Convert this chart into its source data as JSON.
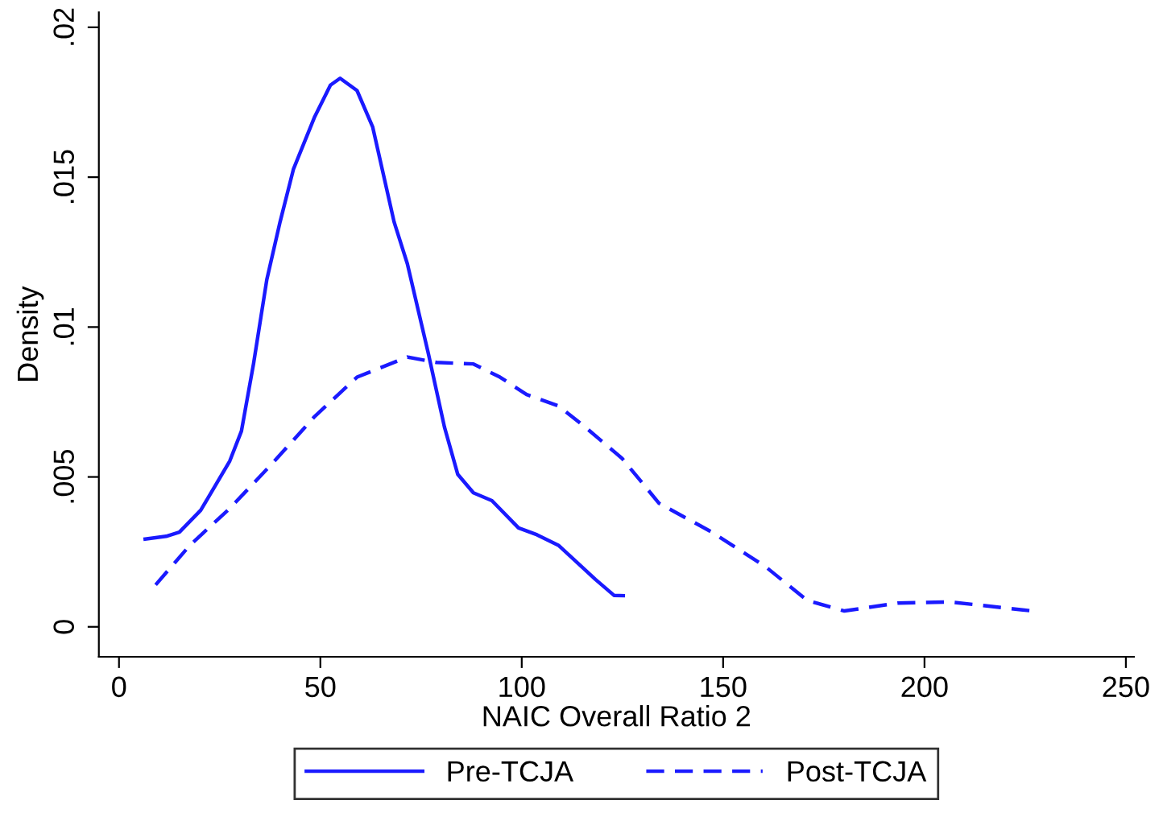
{
  "chart_data": {
    "type": "line",
    "xlabel": "NAIC Overall Ratio 2",
    "ylabel": "Density",
    "xlim": [
      -5,
      252
    ],
    "ylim": [
      -0.001,
      0.0205
    ],
    "xticks": [
      0,
      50,
      100,
      150,
      200,
      250
    ],
    "yticks": [
      {
        "value": 0,
        "label": "0"
      },
      {
        "value": 0.005,
        "label": ".005"
      },
      {
        "value": 0.01,
        "label": ".01"
      },
      {
        "value": 0.015,
        "label": ".015"
      },
      {
        "value": 0.02,
        "label": ".02"
      }
    ],
    "grid": false,
    "legend": "bottom",
    "marker": "none",
    "series": [
      {
        "name": "Pre-TCJA",
        "color": "#1a1aff",
        "line_style": "solid",
        "x": [
          6.5,
          11.7,
          15.0,
          20.3,
          27.5,
          30.4,
          33.4,
          36.7,
          40.0,
          43.3,
          48.6,
          52.5,
          54.9,
          59.1,
          63.0,
          68.3,
          71.6,
          76.8,
          80.8,
          84.1,
          88.0,
          92.6,
          99.2,
          103.8,
          109.1,
          118.3,
          122.9,
          125.2
        ],
        "values": [
          0.00293,
          0.00302,
          0.00316,
          0.00389,
          0.00553,
          0.00653,
          0.00877,
          0.01158,
          0.01351,
          0.01526,
          0.01702,
          0.01807,
          0.0183,
          0.01789,
          0.01667,
          0.01351,
          0.01211,
          0.00912,
          0.00667,
          0.00509,
          0.00447,
          0.00421,
          0.0033,
          0.00307,
          0.00272,
          0.00158,
          0.00105,
          0.00104
        ]
      },
      {
        "name": "Post-TCJA",
        "color": "#1a1aff",
        "line_style": "dashed",
        "x": [
          9.1,
          17.6,
          27.5,
          38.0,
          48.6,
          59.1,
          71.6,
          78.8,
          88.0,
          94.6,
          101.2,
          109.1,
          115.7,
          124.9,
          134.1,
          147.2,
          160.4,
          170.9,
          180.1,
          193.3,
          206.4,
          226.8
        ],
        "values": [
          0.0014,
          0.00272,
          0.00395,
          0.00544,
          0.00702,
          0.00833,
          0.009,
          0.00882,
          0.00877,
          0.00833,
          0.00775,
          0.00737,
          0.00667,
          0.00562,
          0.00412,
          0.00316,
          0.00202,
          0.00088,
          0.00053,
          0.00079,
          0.00083,
          0.00053
        ]
      }
    ]
  }
}
